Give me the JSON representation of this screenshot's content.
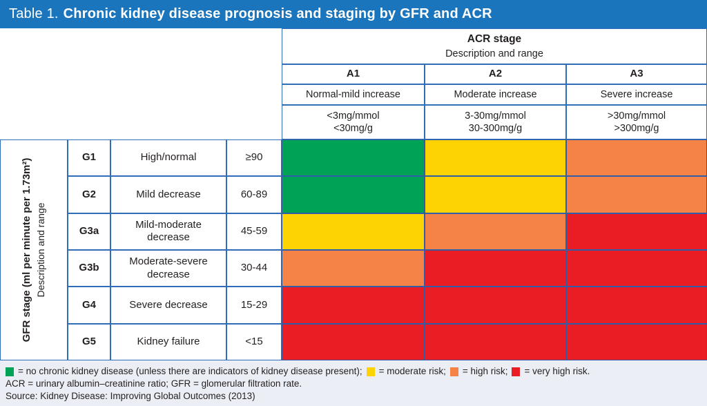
{
  "header": {
    "table_label": "Table 1.",
    "title": "Chronic kidney disease prognosis and staging by GFR and ACR"
  },
  "colors": {
    "brand_blue": "#1b75bc",
    "border_blue": "#2f6db8",
    "footer_bg": "#ebeef5"
  },
  "acr": {
    "stage_label": "ACR stage",
    "sub_label": "Description and range",
    "columns": [
      {
        "code": "A1",
        "description": "Normal-mild increase",
        "range_line1": "<3mg/mmol",
        "range_line2": "<30mg/g"
      },
      {
        "code": "A2",
        "description": "Moderate increase",
        "range_line1": "3-30mg/mmol",
        "range_line2": "30-300mg/g"
      },
      {
        "code": "A3",
        "description": "Severe increase",
        "range_line1": ">30mg/mmol",
        "range_line2": ">300mg/g"
      }
    ]
  },
  "gfr": {
    "axis_title": "GFR stage (ml per minute per 1.73m²)",
    "axis_subtitle": "Description and range",
    "rows": [
      {
        "code": "G1",
        "description": "High/normal",
        "range": "≥90"
      },
      {
        "code": "G2",
        "description": "Mild decrease",
        "range": "60-89"
      },
      {
        "code": "G3a",
        "description": "Mild-moderate decrease",
        "range": "45-59"
      },
      {
        "code": "G3b",
        "description": "Moderate-severe decrease",
        "range": "30-44"
      },
      {
        "code": "G4",
        "description": "Severe decrease",
        "range": "15-29"
      },
      {
        "code": "G5",
        "description": "Kidney failure",
        "range": "<15"
      }
    ]
  },
  "risk": {
    "colors": {
      "green": "#00a356",
      "yellow": "#fdd304",
      "orange": "#f58345",
      "red": "#ea1c24"
    },
    "matrix": [
      [
        "green",
        "yellow",
        "orange"
      ],
      [
        "green",
        "yellow",
        "orange"
      ],
      [
        "yellow",
        "orange",
        "red"
      ],
      [
        "orange",
        "red",
        "red"
      ],
      [
        "red",
        "red",
        "red"
      ],
      [
        "red",
        "red",
        "red"
      ]
    ]
  },
  "footer": {
    "legend": [
      {
        "color": "green",
        "label": "= no chronic kidney disease (unless there are indicators of kidney disease present);"
      },
      {
        "color": "yellow",
        "label": "= moderate risk;"
      },
      {
        "color": "orange",
        "label": "= high risk;"
      },
      {
        "color": "red",
        "label": "= very high risk."
      }
    ],
    "abbreviations": "ACR = urinary albumin–creatinine ratio; GFR = glomerular filtration rate.",
    "source": "Source: Kidney Disease: Improving Global Outcomes (2013)"
  },
  "chart_data": {
    "type": "heatmap",
    "title": "Table 1. Chronic kidney disease prognosis and staging by GFR and ACR",
    "x": {
      "label": "ACR stage — Description and range",
      "categories": [
        "A1",
        "A2",
        "A3"
      ],
      "descriptions": [
        "Normal-mild increase",
        "Moderate increase",
        "Severe increase"
      ],
      "ranges": [
        "<3mg/mmol <30mg/g",
        "3-30mg/mmol 30-300mg/g",
        ">30mg/mmol >300mg/g"
      ]
    },
    "y": {
      "label": "GFR stage (ml per minute per 1.73m²) — Description and range",
      "categories": [
        "G1",
        "G2",
        "G3a",
        "G3b",
        "G4",
        "G5"
      ],
      "descriptions": [
        "High/normal",
        "Mild decrease",
        "Mild-moderate decrease",
        "Moderate-severe decrease",
        "Severe decrease",
        "Kidney failure"
      ],
      "ranges": [
        "≥90",
        "60-89",
        "45-59",
        "30-44",
        "15-29",
        "<15"
      ]
    },
    "values": [
      [
        "no chronic kidney disease",
        "moderate risk",
        "high risk"
      ],
      [
        "no chronic kidney disease",
        "moderate risk",
        "high risk"
      ],
      [
        "moderate risk",
        "high risk",
        "very high risk"
      ],
      [
        "high risk",
        "very high risk",
        "very high risk"
      ],
      [
        "very high risk",
        "very high risk",
        "very high risk"
      ],
      [
        "very high risk",
        "very high risk",
        "very high risk"
      ]
    ],
    "legend_position": "bottom",
    "color_map": {
      "no chronic kidney disease": "#00a356",
      "moderate risk": "#fdd304",
      "high risk": "#f58345",
      "very high risk": "#ea1c24"
    }
  }
}
